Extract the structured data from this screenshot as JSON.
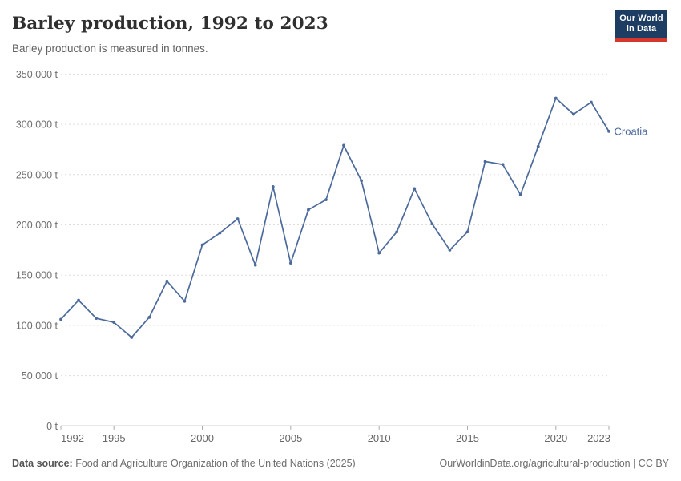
{
  "header": {
    "title": "Barley production, 1992 to 2023",
    "subtitle": "Barley production is measured in tonnes.",
    "logo": {
      "line1": "Our World",
      "line2": "in Data",
      "bg_color": "#1d3d63",
      "accent_color": "#d4382d"
    }
  },
  "chart_data": {
    "type": "line",
    "title": "Barley production, 1992 to 2023",
    "xlabel": "",
    "ylabel": "tonnes",
    "unit": "t",
    "x": [
      1992,
      1993,
      1994,
      1995,
      1996,
      1997,
      1998,
      1999,
      2000,
      2001,
      2002,
      2003,
      2004,
      2005,
      2006,
      2007,
      2008,
      2009,
      2010,
      2011,
      2012,
      2013,
      2014,
      2015,
      2016,
      2017,
      2018,
      2019,
      2020,
      2021,
      2022,
      2023
    ],
    "series": [
      {
        "name": "Croatia",
        "color": "#4c6a9c",
        "values": [
          106000,
          125000,
          107000,
          103000,
          88000,
          108000,
          144000,
          124000,
          180000,
          192000,
          206000,
          160000,
          238000,
          162000,
          215000,
          225000,
          279000,
          244000,
          172000,
          193000,
          236000,
          201000,
          175000,
          193000,
          263000,
          260000,
          230000,
          278000,
          326000,
          310000,
          322000,
          293000
        ]
      }
    ],
    "ylim": [
      0,
      350000
    ],
    "yticks": [
      0,
      50000,
      100000,
      150000,
      200000,
      250000,
      300000,
      350000
    ],
    "xticks": [
      1992,
      1995,
      2000,
      2005,
      2010,
      2015,
      2020,
      2023
    ],
    "grid": true,
    "legend_position": "end-of-line",
    "gridline_color": "#dddddd",
    "axis_color": "#a8a8a8",
    "tick_label_color": "#6e6e6e"
  },
  "footer": {
    "source_label": "Data source:",
    "source_text": " Food and Agriculture Organization of the United Nations (2025)",
    "link_text": "OurWorldinData.org/agricultural-production | CC BY"
  }
}
